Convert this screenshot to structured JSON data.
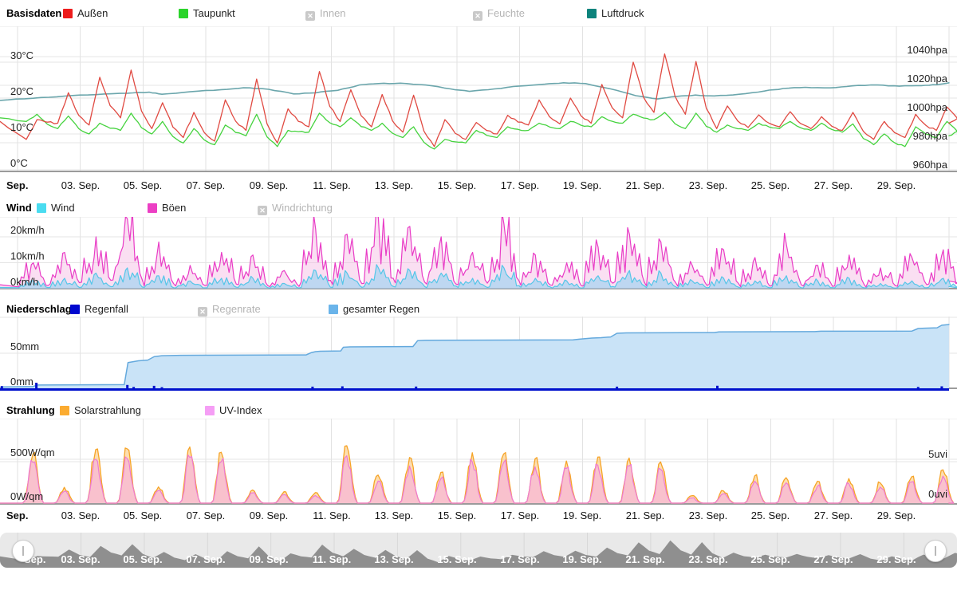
{
  "icons": {
    "disabled_x": "✕"
  },
  "x_axis": {
    "lead_label": "Sep.",
    "tick_days": [
      3,
      5,
      7,
      9,
      11,
      13,
      15,
      17,
      19,
      21,
      23,
      25,
      27,
      29
    ],
    "tick_labels": [
      "03. Sep.",
      "05. Sep.",
      "07. Sep.",
      "09. Sep.",
      "11. Sep.",
      "13. Sep.",
      "15. Sep.",
      "17. Sep.",
      "19. Sep.",
      "21. Sep.",
      "23. Sep.",
      "25. Sep.",
      "27. Sep.",
      "29. Sep."
    ]
  },
  "chart_data": [
    {
      "id": "basisdaten",
      "type": "line",
      "title": "Basisdaten",
      "x_unit": "day_of_september",
      "x_range": [
        0.44,
        30.68
      ],
      "y_left": {
        "unit": "°C",
        "ticks": [
          "0°C",
          "10°C",
          "20°C",
          "30°C"
        ],
        "tick_values": [
          0,
          10,
          20,
          30
        ]
      },
      "y_right": {
        "unit": "hpa",
        "ticks": [
          "960hpa",
          "980hpa",
          "1000hpa",
          "1020hpa",
          "1040hpa"
        ],
        "tick_values": [
          960,
          980,
          1000,
          1020,
          1040
        ]
      },
      "legend": [
        {
          "label": "Außen",
          "color": "#ed1c1c",
          "disabled": false
        },
        {
          "label": "Taupunkt",
          "color": "#2bd42b",
          "disabled": false
        },
        {
          "label": "Innen",
          "disabled": true
        },
        {
          "label": "Feuchte",
          "disabled": true
        },
        {
          "label": "Luftdruck",
          "color": "#0d837c",
          "disabled": false
        }
      ],
      "series": {
        "aussen": {
          "name": "Außen",
          "unit": "°C",
          "color": "#e04a42",
          "start": 13.5,
          "end": 13.0,
          "daily_low": [
            8.5,
            13,
            12.5,
            14.5,
            11.5,
            9,
            8,
            11,
            7.5,
            12,
            13.5,
            12,
            10.5,
            6.5,
            8.5,
            10,
            12.5,
            12.8,
            13,
            14.5,
            16,
            15.5,
            11.5,
            11.8,
            12,
            11.5,
            11,
            8.5,
            9,
            11
          ],
          "daily_high": [
            14,
            21.5,
            25.8,
            27.8,
            18.7,
            16,
            19.5,
            25.3,
            17,
            27.4,
            22.3,
            21,
            20.8,
            14,
            13.2,
            15.2,
            19.5,
            20,
            23.8,
            30,
            32.3,
            30.2,
            17.8,
            15.3,
            16.2,
            14.8,
            16,
            13.5,
            15.5,
            17.5
          ]
        },
        "taupunkt": {
          "name": "Taupunkt",
          "unit": "°C",
          "color": "#46d33f",
          "start": 14.5,
          "end": 9.5,
          "daily_low": [
            13.5,
            11.5,
            10,
            11,
            10,
            7.5,
            7,
            9.5,
            6.5,
            10.5,
            12,
            11,
            9,
            5.8,
            7.5,
            9,
            11,
            11.5,
            12,
            13,
            14,
            11.5,
            10.5,
            11,
            11.5,
            11,
            10.5,
            7,
            6.5,
            9
          ],
          "daily_high": [
            15.5,
            15,
            13,
            15.8,
            13.5,
            11.5,
            12.5,
            15.5,
            11,
            15.8,
            14.5,
            13,
            12,
            8.5,
            11,
            12,
            13,
            13.5,
            14.8,
            15.5,
            16,
            15.8,
            12.5,
            13,
            13.5,
            13,
            12.8,
            10,
            12,
            13.5
          ]
        },
        "luftdruck": {
          "name": "Luftdruck",
          "unit": "hpa",
          "color": "#6ba6ac",
          "points_day_hpa": [
            0.44,
            1009.5,
            1.5,
            1011,
            2.5,
            1012.5,
            3.5,
            1013.5,
            4.5,
            1014.5,
            5.2,
            1015.2,
            5.6,
            1013.8,
            6.5,
            1015.5,
            7.5,
            1017,
            8.2,
            1018.3,
            9,
            1017.2,
            9.8,
            1014,
            10.5,
            1014.8,
            11.2,
            1016.5,
            11.9,
            1020.3,
            12.5,
            1021.2,
            13.2,
            1021.5,
            14,
            1020.2,
            14.8,
            1017.5,
            15.4,
            1015.8,
            16.2,
            1017.5,
            17,
            1019.5,
            17.8,
            1020.8,
            18.4,
            1021.8,
            19.1,
            1021.2,
            19.9,
            1017.5,
            20.7,
            1012.8,
            21.4,
            1010.5,
            22,
            1012.3,
            22.6,
            1013.2,
            23.2,
            1012.6,
            24,
            1013.8,
            24.8,
            1016,
            25.4,
            1017.8,
            26.1,
            1018.6,
            26.9,
            1018.2,
            27.6,
            1019.6,
            28.4,
            1020.2,
            29.1,
            1019.4,
            29.8,
            1019.8,
            30.3,
            1020.4,
            30.68,
            1021.8
          ]
        }
      }
    },
    {
      "id": "wind",
      "type": "area",
      "title": "Wind",
      "y_left": {
        "unit": "km/h",
        "ticks": [
          "0km/h",
          "10km/h",
          "20km/h"
        ],
        "tick_values": [
          0,
          10,
          20
        ]
      },
      "legend": [
        {
          "label": "Wind",
          "color": "#4adcf0",
          "disabled": false
        },
        {
          "label": "Böen",
          "color": "#ec3fc4",
          "disabled": false
        },
        {
          "label": "Windrichtung",
          "disabled": true
        }
      ],
      "series": {
        "boeen": {
          "name": "Böen",
          "unit": "km/h",
          "color": "#e93cc6",
          "fill": "rgba(243,183,227,0.45)",
          "daily_max": [
            10,
            14,
            20,
            27,
            18,
            9,
            14,
            13,
            7,
            23,
            21,
            27,
            24,
            20,
            14,
            25,
            13,
            10,
            16,
            21,
            18,
            9,
            15,
            12,
            17,
            9,
            13,
            8,
            12,
            15
          ]
        },
        "wind": {
          "name": "Wind",
          "unit": "km/h",
          "color": "#55c6e8",
          "fill": "rgba(150,210,240,0.6)",
          "daily_max": [
            3,
            4,
            6,
            8,
            5,
            3,
            4,
            4,
            2,
            7,
            6,
            8,
            7,
            6,
            4,
            8,
            4,
            3,
            5,
            7,
            6,
            3,
            4,
            3,
            5,
            3,
            4,
            2,
            3,
            4
          ]
        }
      }
    },
    {
      "id": "niederschlag",
      "type": "area",
      "title": "Niederschlag",
      "y_left": {
        "unit": "mm",
        "ticks": [
          "0mm",
          "50mm"
        ],
        "tick_values": [
          0,
          50
        ]
      },
      "legend": [
        {
          "label": "Regenfall",
          "color": "#0008cf",
          "disabled": false
        },
        {
          "label": "Regenrate",
          "disabled": true
        },
        {
          "label": "gesamter Regen",
          "color": "#6ab4ea",
          "disabled": false
        }
      ],
      "series": {
        "gesamter_regen": {
          "name": "gesamter Regen",
          "unit": "mm",
          "color": "#64a9dd",
          "fill": "#c9e3f7",
          "cumulative_day_mm": [
            0.44,
            0,
            0.5,
            2,
            1.5,
            2.5,
            1.62,
            4.5,
            4.4,
            5,
            4.52,
            35,
            4.85,
            37.5,
            5.15,
            38.5,
            5.35,
            43,
            5.6,
            44.5,
            6.2,
            45,
            10.2,
            45.5,
            10.35,
            48.5,
            10.5,
            50,
            10.65,
            50.5,
            11.3,
            51,
            11.38,
            56,
            11.6,
            56.5,
            13.6,
            57,
            13.75,
            65,
            14,
            65.5,
            18.7,
            66,
            18.9,
            67,
            19.3,
            68.5,
            19.6,
            69,
            19.9,
            70,
            20.1,
            75,
            20.4,
            75.5,
            23.2,
            76,
            23.35,
            77,
            26.4,
            77.3,
            26.6,
            77.8,
            29.5,
            78,
            29.7,
            81.5,
            29.9,
            82,
            30.3,
            82.5,
            30.45,
            86,
            30.68,
            87
          ]
        },
        "regenfall": {
          "name": "Regenfall",
          "unit": "mm",
          "color": "#0011cc",
          "bars_day_mm": [
            [
              0.5,
              2
            ],
            [
              1.6,
              5
            ],
            [
              4.5,
              3
            ],
            [
              4.7,
              1.2
            ],
            [
              5.35,
              2.2
            ],
            [
              5.6,
              1
            ],
            [
              10.4,
              1.5
            ],
            [
              11.35,
              1.8
            ],
            [
              13.7,
              1.6
            ],
            [
              20.1,
              1.5
            ],
            [
              23.3,
              2.3
            ],
            [
              29.7,
              1.2
            ],
            [
              30.45,
              1.8
            ]
          ]
        }
      }
    },
    {
      "id": "strahlung",
      "type": "area",
      "title": "Strahlung",
      "y_left": {
        "unit": "W/qm",
        "ticks": [
          "0W/qm",
          "500W/qm"
        ],
        "tick_values": [
          0,
          500
        ]
      },
      "y_right": {
        "unit": "uvi",
        "ticks": [
          "0uvi",
          "5uvi"
        ],
        "tick_values": [
          0,
          5
        ]
      },
      "legend": [
        {
          "label": "Solarstrahlung",
          "color": "#fbab30",
          "disabled": false
        },
        {
          "label": "UV-Index",
          "color": "#f59ef5",
          "disabled": false
        }
      ],
      "series": {
        "solarstrahlung": {
          "name": "Solarstrahlung",
          "unit": "W/qm",
          "color": "#f6a428",
          "fill": "rgba(252,190,96,0.5)",
          "daily_max": [
            560,
            180,
            610,
            620,
            185,
            640,
            580,
            150,
            130,
            120,
            655,
            320,
            520,
            350,
            575,
            560,
            505,
            480,
            525,
            515,
            470,
            85,
            140,
            310,
            290,
            250,
            280,
            230,
            300,
            380
          ]
        },
        "uv_index": {
          "name": "UV-Index",
          "unit": "uvi",
          "color": "#ee7bd2",
          "fill": "rgba(247,173,225,0.6)",
          "daily_max": [
            4.8,
            1.4,
            5.2,
            5.3,
            1.5,
            5.4,
            4.9,
            1.2,
            1,
            0.9,
            5.6,
            2.6,
            4.4,
            2.9,
            4.9,
            4.8,
            4.3,
            4.1,
            4.5,
            4.4,
            4,
            0.6,
            1.1,
            2.6,
            2.4,
            2,
            2.3,
            1.9,
            2.5,
            3.2
          ]
        }
      }
    }
  ],
  "navigator": {
    "description": "temperature overview",
    "area_color": "#8f8f8f",
    "background": "#e9e9e9"
  }
}
